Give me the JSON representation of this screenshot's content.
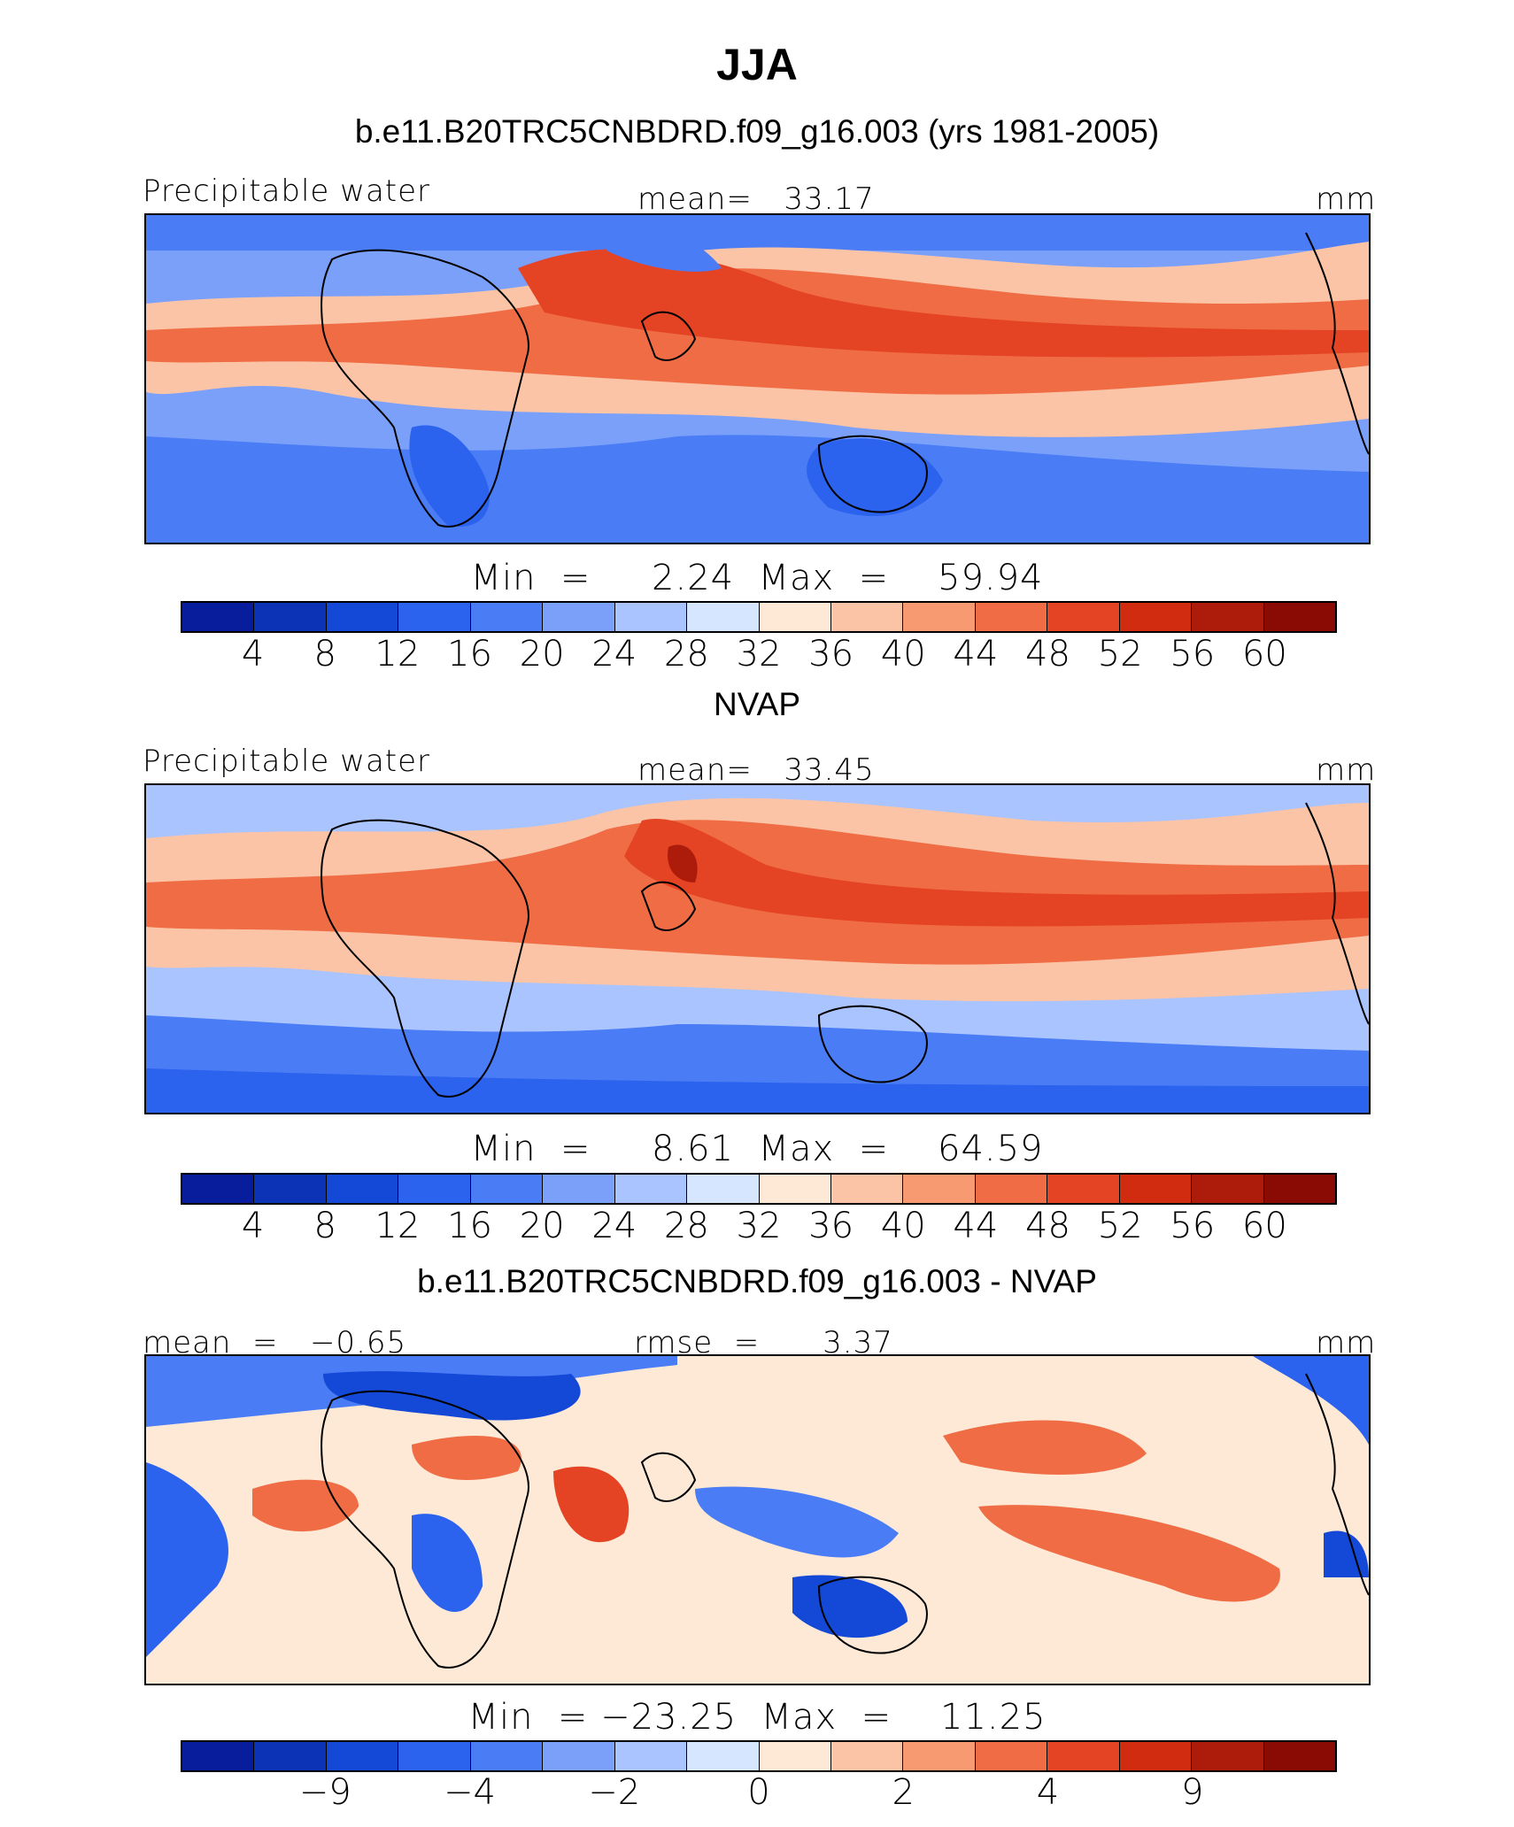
{
  "title": "JJA",
  "units": "mm",
  "colors": {
    "scale": [
      "#081d9b",
      "#0c33b5",
      "#1448d6",
      "#2b62ee",
      "#4a7cf5",
      "#7aa0fa",
      "#aac4ff",
      "#d6e6ff",
      "#fde9d6",
      "#fbc4a6",
      "#f79a72",
      "#f06c45",
      "#e44424",
      "#d22c10",
      "#ad1c0a",
      "#8a0a04"
    ],
    "coast": "#000000"
  },
  "panels": [
    {
      "id": "model",
      "title": "b.e11.B20TRC5CNBDRD.f09_g16.003 (yrs 1981-2005)",
      "left_label": "Precipitable water",
      "center_label": "mean=   33.17",
      "right_label": "mm",
      "minmax": "Min  =     2.24  Max  =    59.94",
      "tick_labels": [
        "4",
        "8",
        "12",
        "16",
        "20",
        "24",
        "28",
        "32",
        "36",
        "40",
        "44",
        "48",
        "52",
        "56",
        "60"
      ],
      "icon": "precipitable-water-map"
    },
    {
      "id": "obs",
      "title": "NVAP",
      "left_label": "Precipitable water",
      "center_label": "mean=   33.45",
      "right_label": "mm",
      "minmax": "Min  =     8.61  Max  =    64.59",
      "tick_labels": [
        "4",
        "8",
        "12",
        "16",
        "20",
        "24",
        "28",
        "32",
        "36",
        "40",
        "44",
        "48",
        "52",
        "56",
        "60"
      ],
      "icon": "precipitable-water-map"
    },
    {
      "id": "diff",
      "title": "b.e11.B20TRC5CNBDRD.f09_g16.003 - NVAP",
      "left_label": "mean  =   −0.65",
      "center_label": "rmse  =      3.37",
      "right_label": "mm",
      "minmax": "Min  = −23.25  Max  =    11.25",
      "tick_labels": [
        "−9",
        "−4",
        "−2",
        "0",
        "2",
        "4",
        "9"
      ],
      "icon": "difference-map"
    }
  ]
}
